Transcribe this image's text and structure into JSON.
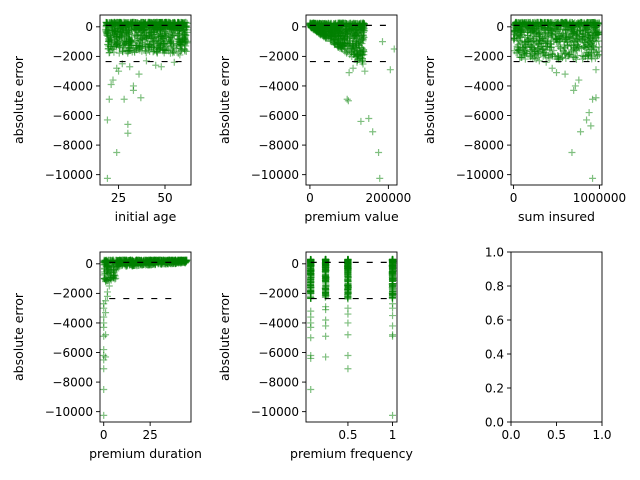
{
  "figure": {
    "background": "#ffffff"
  },
  "colors": {
    "marker": "#008000",
    "reference_line": "#000000",
    "axis": "#000000"
  },
  "chart_data": [
    {
      "id": "initial-age",
      "type": "scatter",
      "marker": "plus",
      "xlabel": "initial age",
      "ylabel": "absolute error",
      "xlim": [
        15,
        64
      ],
      "ylim": [
        -10700,
        800
      ],
      "xticks": [
        25,
        50
      ],
      "yticks": [
        0,
        -2000,
        -4000,
        -6000,
        -8000,
        -10000
      ],
      "band": {
        "x_range": [
          18,
          62
        ],
        "y_min": -1800,
        "y_max": 300,
        "mean": -200,
        "count": 900
      },
      "reference_lines": [
        {
          "y": -2350,
          "x_range": [
            18,
            62
          ]
        },
        {
          "y": 100,
          "x_range": [
            18,
            62
          ]
        }
      ],
      "outliers": [
        [
          19,
          -10250
        ],
        [
          24,
          -8500
        ],
        [
          19,
          -6300
        ],
        [
          30,
          -7200
        ],
        [
          30,
          -6600
        ],
        [
          33,
          -4300
        ],
        [
          37,
          -4800
        ],
        [
          28,
          -4900
        ],
        [
          20,
          -4900
        ],
        [
          21,
          -3900
        ],
        [
          25,
          -3000
        ],
        [
          24,
          -2800
        ],
        [
          27,
          -2500
        ],
        [
          31,
          -2700
        ],
        [
          40,
          -2300
        ],
        [
          45,
          -2600
        ],
        [
          36,
          -3200
        ],
        [
          22,
          -3600
        ],
        [
          33,
          -4000
        ],
        [
          48,
          -2700
        ],
        [
          55,
          -2400
        ],
        [
          58,
          -1900
        ]
      ]
    },
    {
      "id": "premium-value",
      "type": "scatter",
      "marker": "plus",
      "xlabel": "premium value",
      "ylabel": "absolute error",
      "xlim": [
        -10000,
        222000
      ],
      "ylim": [
        -10700,
        800
      ],
      "xticks": [
        0,
        200000
      ],
      "yticks": [
        0,
        -2000,
        -4000,
        -6000,
        -8000,
        -10000
      ],
      "band": {
        "x_range": [
          0,
          140000
        ],
        "y_min": -2600,
        "y_max": 300,
        "mean": -300,
        "count": 700
      },
      "reference_lines": [
        {
          "y": -2350,
          "x_range": [
            0,
            210000
          ]
        },
        {
          "y": 100,
          "x_range": [
            0,
            210000
          ]
        }
      ],
      "outliers": [
        [
          95000,
          -4900
        ],
        [
          98000,
          -5000
        ],
        [
          130000,
          -6400
        ],
        [
          150000,
          -6200
        ],
        [
          160000,
          -7100
        ],
        [
          175000,
          -8500
        ],
        [
          178000,
          -10250
        ],
        [
          205000,
          -2900
        ],
        [
          215000,
          -1500
        ],
        [
          185000,
          -1000
        ],
        [
          110000,
          -2800
        ],
        [
          100000,
          -3100
        ],
        [
          140000,
          -3000
        ],
        [
          120000,
          -2400
        ]
      ]
    },
    {
      "id": "sum-insured",
      "type": "scatter",
      "marker": "plus",
      "xlabel": "sum insured",
      "ylabel": "absolute error",
      "xlim": [
        -30000,
        1030000
      ],
      "ylim": [
        -10700,
        800
      ],
      "xticks": [
        0,
        1000000
      ],
      "yticks": [
        0,
        -2000,
        -4000,
        -6000,
        -8000,
        -10000
      ],
      "band": {
        "x_range": [
          0,
          1000000
        ],
        "y_min": -2200,
        "y_max": 300,
        "mean": -200,
        "count": 800
      },
      "reference_lines": [
        {
          "y": -2350,
          "x_range": [
            0,
            1000000
          ]
        },
        {
          "y": 100,
          "x_range": [
            0,
            1000000
          ]
        }
      ],
      "outliers": [
        [
          920000,
          -10250
        ],
        [
          680000,
          -8500
        ],
        [
          780000,
          -7100
        ],
        [
          850000,
          -6300
        ],
        [
          900000,
          -6700
        ],
        [
          920000,
          -4900
        ],
        [
          960000,
          -4800
        ],
        [
          700000,
          -4300
        ],
        [
          720000,
          -4000
        ],
        [
          760000,
          -3600
        ],
        [
          600000,
          -3200
        ],
        [
          500000,
          -3100
        ],
        [
          450000,
          -2800
        ],
        [
          380000,
          -2400
        ],
        [
          300000,
          -2300
        ],
        [
          880000,
          -5800
        ],
        [
          960000,
          -2900
        ]
      ]
    },
    {
      "id": "premium-duration",
      "type": "scatter",
      "marker": "plus",
      "xlabel": "premium duration",
      "ylabel": "absolute error",
      "xlim": [
        -2,
        47
      ],
      "ylim": [
        -10700,
        800
      ],
      "xticks": [
        0,
        25
      ],
      "yticks": [
        0,
        -2000,
        -4000,
        -6000,
        -8000,
        -10000
      ],
      "band": {
        "x_range": [
          0,
          45
        ],
        "y_min": -1500,
        "y_max": 300,
        "mean": -100,
        "count": 700
      },
      "reference_lines": [
        {
          "y": -2350,
          "x_range": [
            3,
            40
          ]
        },
        {
          "y": 100,
          "x_range": [
            3,
            40
          ]
        }
      ],
      "outliers": [
        [
          0,
          -10250
        ],
        [
          0,
          -8500
        ],
        [
          0,
          -7100
        ],
        [
          0,
          -6500
        ],
        [
          0,
          -6200
        ],
        [
          1,
          -6300
        ],
        [
          0,
          -5800
        ],
        [
          0,
          -4900
        ],
        [
          1,
          -4800
        ],
        [
          0,
          -4300
        ],
        [
          0,
          -4000
        ],
        [
          0,
          -3600
        ],
        [
          1,
          -3300
        ],
        [
          0,
          -3000
        ],
        [
          0,
          -2700
        ],
        [
          1,
          -2500
        ],
        [
          2,
          -2200
        ],
        [
          2,
          -1900
        ],
        [
          3,
          -1500
        ],
        [
          1,
          -1200
        ],
        [
          4,
          -1100
        ],
        [
          3,
          -900
        ]
      ]
    },
    {
      "id": "premium-frequency",
      "type": "scatter",
      "marker": "plus",
      "xlabel": "premium frequency",
      "ylabel": "absolute error",
      "xlim": [
        0.03,
        1.05
      ],
      "ylim": [
        -10700,
        800
      ],
      "xticks": [
        0.5,
        1.0
      ],
      "yticks": [
        0,
        -2000,
        -4000,
        -6000,
        -8000,
        -10000
      ],
      "band": {
        "x_values": [
          0.083,
          0.25,
          0.5,
          1.0
        ],
        "y_min": -2400,
        "y_max": 300,
        "count": 150
      },
      "reference_lines": [
        {
          "y": -2350,
          "x_range": [
            0.083,
            1.0
          ]
        },
        {
          "y": 100,
          "x_range": [
            0.083,
            1.0
          ]
        }
      ],
      "outliers": [
        [
          0.083,
          -8500
        ],
        [
          0.083,
          -6400
        ],
        [
          0.083,
          -6200
        ],
        [
          0.083,
          -5000
        ],
        [
          0.083,
          -4300
        ],
        [
          0.083,
          -4000
        ],
        [
          0.083,
          -3600
        ],
        [
          0.083,
          -3200
        ],
        [
          0.25,
          -6300
        ],
        [
          0.25,
          -4900
        ],
        [
          0.25,
          -4200
        ],
        [
          0.25,
          -3800
        ],
        [
          0.25,
          -3100
        ],
        [
          0.25,
          -2900
        ],
        [
          0.5,
          -7100
        ],
        [
          0.5,
          -6200
        ],
        [
          0.5,
          -4800
        ],
        [
          0.5,
          -4000
        ],
        [
          0.5,
          -3400
        ],
        [
          0.5,
          -3000
        ],
        [
          1.0,
          -10250
        ],
        [
          1.0,
          -4900
        ],
        [
          1.0,
          -4800
        ],
        [
          1.0,
          -4200
        ],
        [
          1.0,
          -3500
        ],
        [
          1.0,
          -3000
        ],
        [
          1.0,
          -2700
        ]
      ]
    },
    {
      "id": "empty-axes",
      "type": "scatter",
      "xlabel": "",
      "ylabel": "",
      "xlim": [
        0,
        1
      ],
      "ylim": [
        0,
        1
      ],
      "xticks": [
        0.0,
        0.5,
        1.0
      ],
      "xticklabels": [
        "0.0",
        "0.5",
        "1.0"
      ],
      "yticks": [
        0.0,
        0.2,
        0.4,
        0.6,
        0.8,
        1.0
      ],
      "yticklabels": [
        "0.0",
        "0.2",
        "0.4",
        "0.6",
        "0.8",
        "1.0"
      ],
      "empty": true
    }
  ]
}
